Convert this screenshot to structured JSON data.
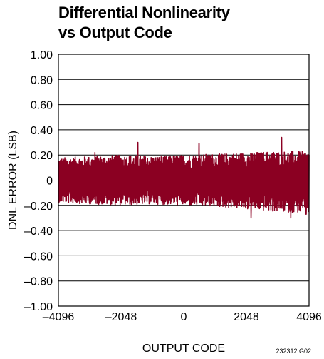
{
  "chart_data": {
    "type": "line",
    "title_lines": [
      "Differential Nonlinearity",
      "vs Output Code"
    ],
    "xlabel": "OUTPUT CODE",
    "ylabel": "DNL ERROR (LSB)",
    "xlim": [
      -4096,
      4096
    ],
    "ylim": [
      -1.0,
      1.0
    ],
    "x_ticks": [
      -4096,
      -2048,
      0,
      2048,
      4096
    ],
    "x_tick_labels": [
      "–4096",
      "–2048",
      "0",
      "2048",
      "4096"
    ],
    "y_ticks": [
      1.0,
      0.8,
      0.6,
      0.4,
      0.2,
      0,
      -0.2,
      -0.4,
      -0.6,
      -0.8,
      -1.0
    ],
    "y_tick_labels": [
      "1.00",
      "0.80",
      "0.60",
      "0.40",
      "0.20",
      "0",
      "–0.20",
      "–0.40",
      "–0.60",
      "–0.80",
      "–1.00"
    ],
    "grid": true,
    "series": [
      {
        "color": "#8b0022",
        "envelope": {
          "x": [
            -4096,
            -3072,
            -2048,
            -1024,
            0,
            1024,
            2048,
            3072,
            4096
          ],
          "upper": [
            0.17,
            0.18,
            0.19,
            0.18,
            0.19,
            0.2,
            0.21,
            0.22,
            0.22
          ],
          "lower": [
            -0.17,
            -0.18,
            -0.19,
            -0.18,
            -0.19,
            -0.2,
            -0.22,
            -0.24,
            -0.25
          ]
        },
        "peaks": [
          {
            "x": 3200,
            "y": 0.34
          },
          {
            "x": -1500,
            "y": 0.3
          },
          {
            "x": 500,
            "y": 0.29
          },
          {
            "x": -2900,
            "y": 0.22
          },
          {
            "x": 3500,
            "y": -0.3
          },
          {
            "x": 2200,
            "y": -0.3
          },
          {
            "x": 4000,
            "y": -0.27
          }
        ]
      }
    ],
    "figure_id": "232312 G02"
  }
}
